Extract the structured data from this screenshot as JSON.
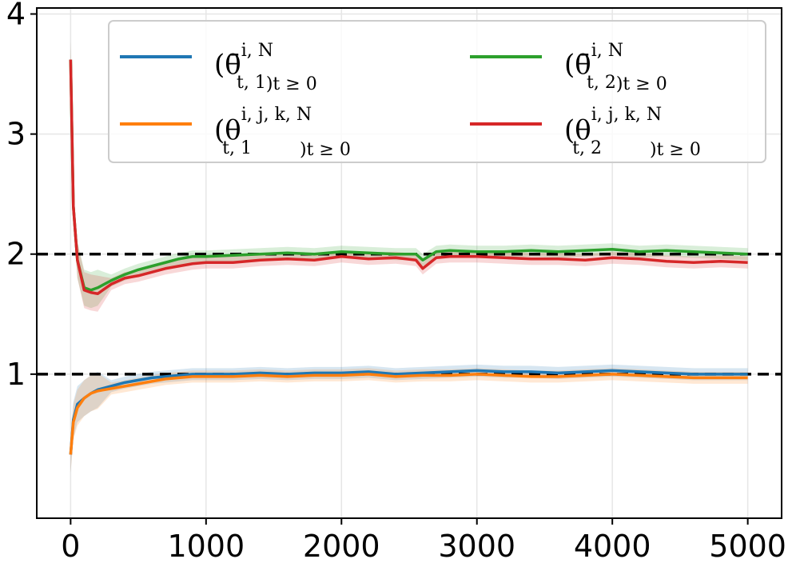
{
  "chart_data": {
    "type": "line",
    "title": "",
    "xlabel": "",
    "ylabel": "",
    "xlim": [
      -250,
      5250
    ],
    "ylim": [
      -0.2,
      4.05
    ],
    "grid": true,
    "legend_position": "top-right",
    "x_ticks": [
      {
        "value": 0,
        "label": "0"
      },
      {
        "value": 1000,
        "label": "1000"
      },
      {
        "value": 2000,
        "label": "2000"
      },
      {
        "value": 3000,
        "label": "3000"
      },
      {
        "value": 4000,
        "label": "4000"
      },
      {
        "value": 5000,
        "label": "5000"
      }
    ],
    "y_ticks": [
      {
        "value": 1,
        "label": "1"
      },
      {
        "value": 2,
        "label": "2"
      },
      {
        "value": 3,
        "label": "3"
      },
      {
        "value": 4,
        "label": "4"
      }
    ],
    "reference_lines": [
      1,
      2
    ],
    "series": [
      {
        "name": "theta_bar_1",
        "label_main": "(θ̄",
        "label_sup": "i, N",
        "label_sub": "t, 1",
        "label_tail": ")t ≥ 0",
        "color": "#1f77b4",
        "x": [
          0,
          20,
          50,
          100,
          150,
          200,
          300,
          400,
          500,
          600,
          700,
          800,
          900,
          1000,
          1200,
          1400,
          1600,
          1800,
          2000,
          2200,
          2400,
          2600,
          2800,
          3000,
          3200,
          3400,
          3600,
          3800,
          4000,
          4200,
          4400,
          4600,
          4800,
          5000
        ],
        "y": [
          0.33,
          0.62,
          0.75,
          0.8,
          0.84,
          0.87,
          0.9,
          0.93,
          0.95,
          0.97,
          0.98,
          0.99,
          1.0,
          1.0,
          1.0,
          1.01,
          1.0,
          1.01,
          1.01,
          1.02,
          1.0,
          1.01,
          1.02,
          1.03,
          1.02,
          1.02,
          1.01,
          1.02,
          1.03,
          1.02,
          1.01,
          1.0,
          1.0,
          1.0
        ]
      },
      {
        "name": "theta_bar_2",
        "label_main": "(θ̄",
        "label_sup": "i, N",
        "label_sub": "t, 2",
        "label_tail": ")t ≥ 0",
        "color": "#2ca02c",
        "x": [
          0,
          20,
          50,
          100,
          150,
          200,
          300,
          400,
          500,
          600,
          700,
          800,
          900,
          1000,
          1200,
          1400,
          1600,
          1800,
          2000,
          2200,
          2400,
          2550,
          2600,
          2700,
          2800,
          3000,
          3200,
          3400,
          3600,
          3800,
          4000,
          4200,
          4400,
          4600,
          4800,
          5000
        ],
        "y": [
          3.62,
          2.4,
          1.95,
          1.72,
          1.7,
          1.72,
          1.78,
          1.83,
          1.87,
          1.9,
          1.93,
          1.96,
          1.98,
          1.98,
          1.99,
          2.0,
          2.01,
          2.0,
          2.02,
          2.01,
          2.0,
          2.0,
          1.95,
          2.02,
          2.03,
          2.02,
          2.02,
          2.03,
          2.02,
          2.03,
          2.04,
          2.02,
          2.03,
          2.02,
          2.01,
          2.0
        ]
      },
      {
        "name": "theta_ijk_1",
        "label_main": "(θ",
        "label_sup": "i, j, k, N",
        "label_sub": "t, 1",
        "label_tail": ")t ≥ 0",
        "color": "#ff7f0e",
        "x": [
          0,
          20,
          50,
          100,
          150,
          200,
          300,
          400,
          500,
          600,
          700,
          800,
          900,
          1000,
          1200,
          1400,
          1600,
          1800,
          2000,
          2200,
          2400,
          2600,
          2800,
          3000,
          3200,
          3400,
          3600,
          3800,
          4000,
          4200,
          4400,
          4600,
          4800,
          5000
        ],
        "y": [
          0.33,
          0.6,
          0.72,
          0.8,
          0.84,
          0.86,
          0.88,
          0.9,
          0.92,
          0.94,
          0.96,
          0.97,
          0.98,
          0.98,
          0.98,
          0.99,
          0.98,
          0.99,
          0.99,
          1.0,
          0.98,
          0.99,
          0.99,
          1.0,
          0.99,
          0.98,
          0.98,
          0.99,
          1.0,
          0.99,
          0.98,
          0.97,
          0.97,
          0.97
        ]
      },
      {
        "name": "theta_ijk_2",
        "label_main": "(θ",
        "label_sup": "i, j, k, N",
        "label_sub": "t, 2",
        "label_tail": ")t ≥ 0",
        "color": "#d62728",
        "x": [
          0,
          20,
          50,
          100,
          150,
          200,
          300,
          400,
          500,
          600,
          700,
          800,
          900,
          1000,
          1200,
          1400,
          1600,
          1800,
          2000,
          2200,
          2400,
          2550,
          2600,
          2700,
          2800,
          3000,
          3200,
          3400,
          3600,
          3800,
          4000,
          4200,
          4400,
          4600,
          4800,
          5000
        ],
        "y": [
          3.62,
          2.4,
          1.95,
          1.7,
          1.68,
          1.67,
          1.75,
          1.8,
          1.82,
          1.85,
          1.88,
          1.9,
          1.92,
          1.93,
          1.93,
          1.95,
          1.96,
          1.95,
          1.98,
          1.96,
          1.97,
          1.95,
          1.88,
          1.97,
          1.98,
          1.98,
          1.97,
          1.96,
          1.96,
          1.95,
          1.97,
          1.96,
          1.94,
          1.93,
          1.94,
          1.93
        ]
      }
    ],
    "band_half_width": 0.05
  }
}
